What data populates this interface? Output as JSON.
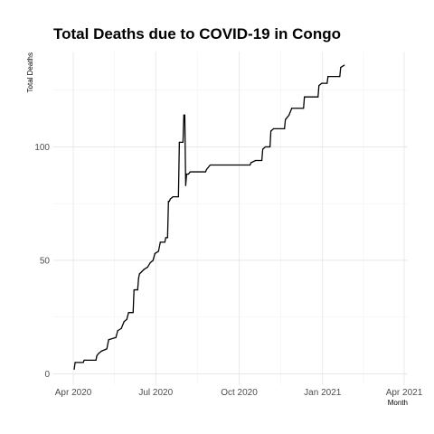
{
  "chart_data": {
    "type": "line",
    "title": "Total Deaths due to COVID-19 in Congo",
    "xlabel": "Month",
    "ylabel": "Total Deaths",
    "grid": true,
    "x_type": "date",
    "xlim": [
      "2020-03-10",
      "2021-04-05"
    ],
    "ylim": [
      -5,
      142
    ],
    "x_ticks": [
      {
        "date": "2020-04-01",
        "label": "Apr 2020"
      },
      {
        "date": "2020-07-01",
        "label": "Jul 2020"
      },
      {
        "date": "2020-10-01",
        "label": "Oct 2020"
      },
      {
        "date": "2021-01-01",
        "label": "Jan 2021"
      },
      {
        "date": "2021-04-01",
        "label": "Apr 2021"
      }
    ],
    "y_ticks": [
      {
        "value": 0,
        "label": "0"
      },
      {
        "value": 50,
        "label": "50"
      },
      {
        "value": 100,
        "label": "100"
      }
    ],
    "series": [
      {
        "color": "#000000",
        "points": [
          [
            "2020-04-02",
            2
          ],
          [
            "2020-04-03",
            5
          ],
          [
            "2020-04-12",
            5
          ],
          [
            "2020-04-13",
            6
          ],
          [
            "2020-04-26",
            6
          ],
          [
            "2020-04-27",
            8
          ],
          [
            "2020-04-29",
            9
          ],
          [
            "2020-05-02",
            10
          ],
          [
            "2020-05-08",
            11
          ],
          [
            "2020-05-10",
            15
          ],
          [
            "2020-05-18",
            16
          ],
          [
            "2020-05-20",
            19
          ],
          [
            "2020-05-24",
            20
          ],
          [
            "2020-05-27",
            23
          ],
          [
            "2020-05-30",
            24
          ],
          [
            "2020-06-01",
            27
          ],
          [
            "2020-06-06",
            27
          ],
          [
            "2020-06-07",
            37
          ],
          [
            "2020-06-11",
            37
          ],
          [
            "2020-06-12",
            42
          ],
          [
            "2020-06-13",
            44
          ],
          [
            "2020-06-18",
            46
          ],
          [
            "2020-06-22",
            47
          ],
          [
            "2020-06-25",
            49
          ],
          [
            "2020-06-28",
            50
          ],
          [
            "2020-06-30",
            53
          ],
          [
            "2020-07-04",
            54
          ],
          [
            "2020-07-06",
            58
          ],
          [
            "2020-07-11",
            58
          ],
          [
            "2020-07-12",
            60
          ],
          [
            "2020-07-14",
            60
          ],
          [
            "2020-07-15",
            76
          ],
          [
            "2020-07-16",
            76
          ],
          [
            "2020-07-17",
            77
          ],
          [
            "2020-07-20",
            78
          ],
          [
            "2020-07-26",
            78
          ],
          [
            "2020-07-27",
            102
          ],
          [
            "2020-07-31",
            102
          ],
          [
            "2020-08-01",
            114
          ],
          [
            "2020-08-02",
            114
          ],
          [
            "2020-08-03",
            83
          ],
          [
            "2020-08-04",
            88
          ],
          [
            "2020-08-06",
            88
          ],
          [
            "2020-08-08",
            89
          ],
          [
            "2020-08-25",
            89
          ],
          [
            "2020-08-26",
            90
          ],
          [
            "2020-08-30",
            92
          ],
          [
            "2020-10-13",
            92
          ],
          [
            "2020-10-14",
            93
          ],
          [
            "2020-10-19",
            94
          ],
          [
            "2020-10-26",
            94
          ],
          [
            "2020-10-27",
            99
          ],
          [
            "2020-10-30",
            100
          ],
          [
            "2020-11-04",
            100
          ],
          [
            "2020-11-05",
            107
          ],
          [
            "2020-11-08",
            108
          ],
          [
            "2020-11-20",
            108
          ],
          [
            "2020-11-21",
            112
          ],
          [
            "2020-11-25",
            114
          ],
          [
            "2020-11-28",
            117
          ],
          [
            "2020-12-11",
            117
          ],
          [
            "2020-12-12",
            122
          ],
          [
            "2020-12-27",
            122
          ],
          [
            "2020-12-28",
            127
          ],
          [
            "2020-12-31",
            128
          ],
          [
            "2021-01-06",
            128
          ],
          [
            "2021-01-07",
            131
          ],
          [
            "2021-01-20",
            131
          ],
          [
            "2021-01-21",
            135
          ],
          [
            "2021-01-25",
            136
          ]
        ]
      }
    ]
  }
}
